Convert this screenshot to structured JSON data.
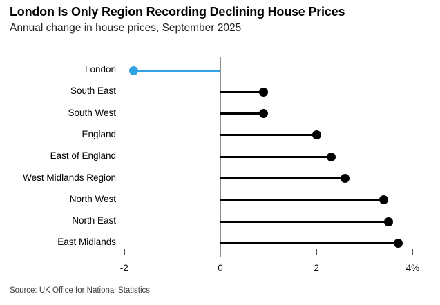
{
  "header": {
    "title": "London Is Only Region Recording Declining House Prices",
    "subtitle": "Annual change in house prices, September 2025"
  },
  "footer": {
    "source": "Source: UK Office for National Statistics"
  },
  "chart_data": {
    "type": "bar",
    "variant": "horizontal-lollipop",
    "title": "London Is Only Region Recording Declining House Prices",
    "subtitle": "Annual change in house prices, September 2025",
    "source": "Source: UK Office for National Statistics",
    "categories": [
      "London",
      "South East",
      "South West",
      "England",
      "East of England",
      "West Midlands Region",
      "North West",
      "North East",
      "East Midlands"
    ],
    "values": [
      -1.8,
      0.9,
      0.9,
      2.0,
      2.3,
      2.6,
      3.4,
      3.5,
      3.7
    ],
    "unit": "%",
    "xlabel": "",
    "ylabel": "",
    "xlim": [
      -2.15,
      4.2
    ],
    "ticks": [
      {
        "value": -2,
        "label": "-2"
      },
      {
        "value": 0,
        "label": "0"
      },
      {
        "value": 2,
        "label": "2"
      },
      {
        "value": 4,
        "label": "4%"
      }
    ],
    "grid": false,
    "legend": false,
    "highlight_category": "London",
    "colors": {
      "default": "#000000",
      "highlight": "#32a3e6",
      "axis": "#909090",
      "tick": "#555555"
    }
  }
}
